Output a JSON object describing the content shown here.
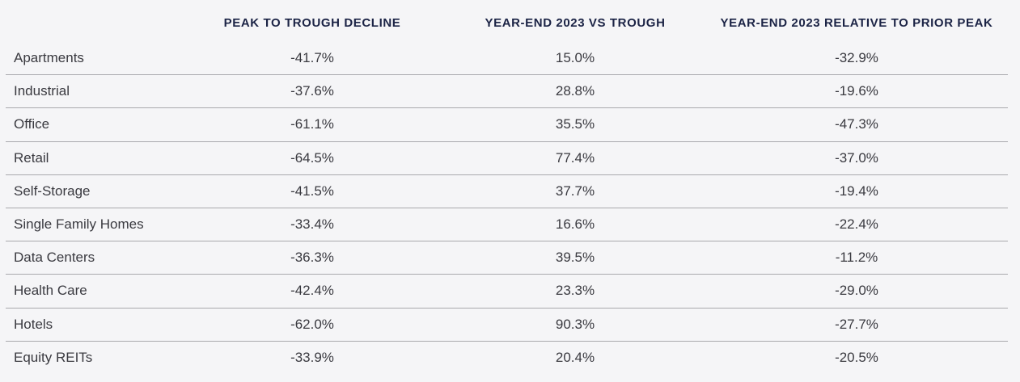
{
  "chart_data": {
    "type": "table",
    "columns": [
      "",
      "PEAK TO TROUGH DECLINE",
      "YEAR-END 2023 VS TROUGH",
      "YEAR-END 2023 RELATIVE TO PRIOR PEAK"
    ],
    "rows": [
      {
        "label": "Apartments",
        "values": [
          "-41.7%",
          "15.0%",
          "-32.9%"
        ]
      },
      {
        "label": "Industrial",
        "values": [
          "-37.6%",
          "28.8%",
          "-19.6%"
        ]
      },
      {
        "label": "Office",
        "values": [
          "-61.1%",
          "35.5%",
          "-47.3%"
        ]
      },
      {
        "label": "Retail",
        "values": [
          "-64.5%",
          "77.4%",
          "-37.0%"
        ]
      },
      {
        "label": "Self-Storage",
        "values": [
          "-41.5%",
          "37.7%",
          "-19.4%"
        ]
      },
      {
        "label": "Single Family Homes",
        "values": [
          "-33.4%",
          "16.6%",
          "-22.4%"
        ]
      },
      {
        "label": "Data Centers",
        "values": [
          "-36.3%",
          "39.5%",
          "-11.2%"
        ]
      },
      {
        "label": "Health Care",
        "values": [
          "-42.4%",
          "23.3%",
          "-29.0%"
        ]
      },
      {
        "label": "Hotels",
        "values": [
          "-62.0%",
          "90.3%",
          "-27.7%"
        ]
      },
      {
        "label": "Equity REITs",
        "values": [
          "-33.9%",
          "20.4%",
          "-20.5%"
        ]
      }
    ],
    "colors": {
      "header_text": "#1b2345",
      "body_text": "#3a3a40",
      "divider": "#a9a9ad",
      "background": "#f5f5f7"
    }
  }
}
